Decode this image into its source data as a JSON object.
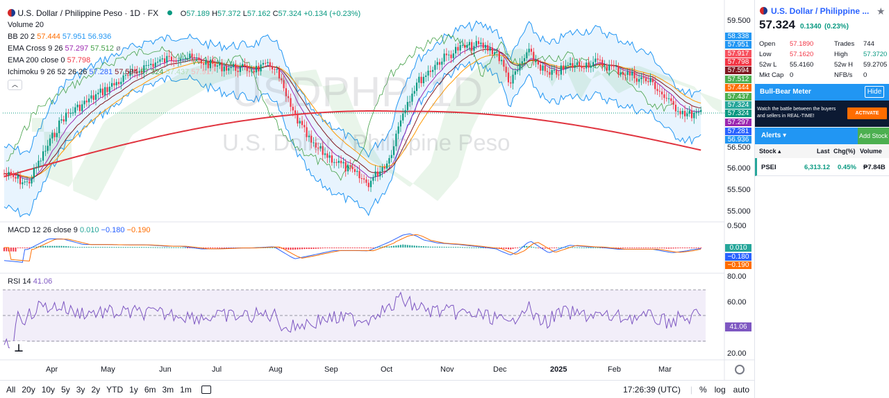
{
  "header": {
    "title": "U.S. Dollar / Philippine Peso · 1D · FX",
    "ohlc": {
      "o_label": "O",
      "o": "57.189",
      "h_label": "H",
      "h": "57.372",
      "l_label": "L",
      "l": "57.162",
      "c_label": "C",
      "c": "57.324",
      "change": "+0.134 (+0.23%)"
    }
  },
  "indicators": {
    "volume": "Volume 20",
    "bb": {
      "label": "BB 20 2",
      "v1": "57.444",
      "v2": "57.951",
      "v3": "56.936"
    },
    "ema_cross": {
      "label": "EMA Cross 9 26",
      "v1": "57.297",
      "v2": "57.512",
      "extra": "ø"
    },
    "ema200": {
      "label": "EMA 200 close 0",
      "v1": "57.798"
    },
    "ichimoku": {
      "label": "Ichimoku 9 26 52 26 26",
      "v1": "57.281",
      "v2": "57.594",
      "v3": "57.324",
      "v4": "57.437",
      "v5": "57.917"
    },
    "macd": {
      "label": "MACD 12 26 close 9",
      "v1": "0.010",
      "v2": "−0.180",
      "v3": "−0.190"
    },
    "rsi": {
      "label": "RSI 14",
      "v1": "41.06"
    }
  },
  "watermark": {
    "symbol": "USDPHP, 1D",
    "name": "U.S. Dollar / Philippine Peso"
  },
  "price_axis": [
    "59.500",
    "56.500",
    "56.000",
    "55.500",
    "55.000"
  ],
  "price_tags": [
    {
      "value": "58.338",
      "color": "#2196f3"
    },
    {
      "value": "57.951",
      "color": "#2196f3"
    },
    {
      "value": "57.917",
      "color": "#f7525f"
    },
    {
      "value": "57.798",
      "color": "#f23645"
    },
    {
      "value": "57.594",
      "color": "#801922"
    },
    {
      "value": "57.512",
      "color": "#4caf50"
    },
    {
      "value": "57.444",
      "color": "#ff6d00"
    },
    {
      "value": "57.437",
      "color": "#4caf50"
    },
    {
      "value": "57.324",
      "color": "#26a69a"
    },
    {
      "value": "57.324",
      "color": "#089981"
    },
    {
      "value": "57.297",
      "color": "#9c27b0"
    },
    {
      "value": "57.281",
      "color": "#2962ff"
    },
    {
      "value": "56.936",
      "color": "#2196f3"
    }
  ],
  "macd_axis": [
    "0.500"
  ],
  "macd_tags": [
    {
      "value": "0.010",
      "color": "#26a69a"
    },
    {
      "value": "−0.180",
      "color": "#2962ff"
    },
    {
      "value": "−0.190",
      "color": "#ff6d00"
    }
  ],
  "rsi_axis": [
    "80.00",
    "60.00",
    "20.00"
  ],
  "rsi_tag": {
    "value": "41.06",
    "color": "#7e57c2"
  },
  "time_axis": [
    "Apr",
    "May",
    "Jun",
    "Jul",
    "Aug",
    "Sep",
    "Oct",
    "Nov",
    "Dec",
    "2025",
    "Feb",
    "Mar"
  ],
  "ranges": [
    "All",
    "20y",
    "10y",
    "5y",
    "3y",
    "2y",
    "YTD",
    "1y",
    "6m",
    "3m",
    "1m"
  ],
  "clock": "17:26:39 (UTC)",
  "scale_opts": [
    "%",
    "log",
    "auto"
  ],
  "sidebar": {
    "title": "U.S. Dollar / Philippine ...",
    "price": "57.324",
    "change": "0.1340",
    "change_pct": "(0.23%)",
    "stats": {
      "open_label": "Open",
      "open": "57.1890",
      "trades_label": "Trades",
      "trades": "744",
      "low_label": "Low",
      "low": "57.1620",
      "high_label": "High",
      "high": "57.3720",
      "w52l_label": "52w L",
      "w52l": "55.4160",
      "w52h_label": "52w H",
      "w52h": "59.2705",
      "mcap_label": "Mkt Cap",
      "mcap": "0",
      "nfb_label": "NFB/s",
      "nfb": "0"
    },
    "meter_title": "Bull-Bear Meter",
    "hide": "Hide",
    "banner_line1": "Watch the battle between the buyers",
    "banner_line2": "and sellers in REAL-TIME!",
    "activate": "ACTIVATE",
    "alerts": "Alerts ▾",
    "add_stock": "Add Stock",
    "watch_head": {
      "stock": "Stock ▴",
      "last": "Last",
      "chg": "Chg(%)",
      "volume": "Volume"
    },
    "watch_row": {
      "stock": "PSEI",
      "last": "6,313.12",
      "chg": "0.45%",
      "volume": "₱7.84B"
    }
  }
}
